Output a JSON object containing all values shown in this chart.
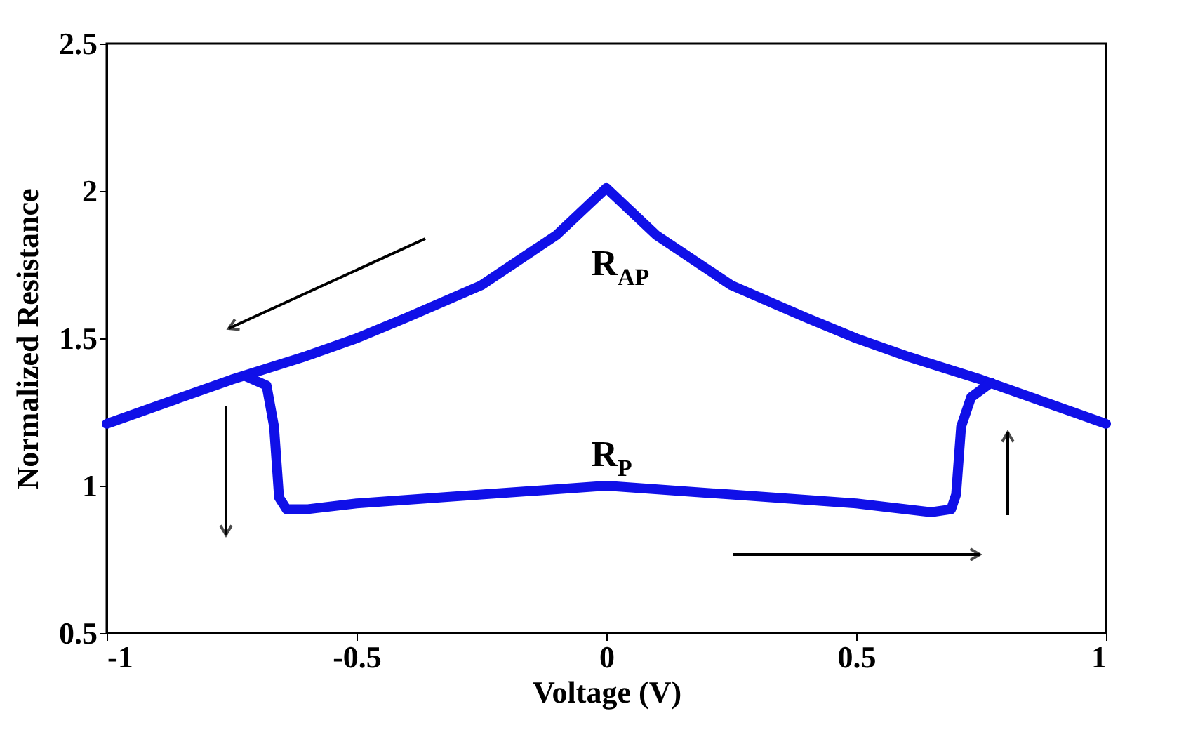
{
  "chart_data": {
    "type": "line",
    "xlabel": "Voltage (V)",
    "ylabel": "Normalized Resistance",
    "xlim": [
      -1,
      1
    ],
    "xticks": [
      -1,
      -0.5,
      0,
      0.5,
      1
    ],
    "ylim": [
      0.5,
      2.5
    ],
    "yticks": [
      0.5,
      1,
      1.5,
      2,
      2.5
    ],
    "grid": false,
    "line_style": "solid",
    "series": [
      {
        "color": "#1010e8",
        "x": [
          -1,
          -0.9,
          -0.75,
          -0.6,
          -0.5,
          -0.4,
          -0.25,
          -0.1,
          0,
          0.1,
          0.25,
          0.4,
          0.5,
          0.6,
          0.75,
          0.9,
          1
        ],
        "values": [
          1.21,
          1.27,
          1.36,
          1.44,
          1.5,
          1.57,
          1.68,
          1.85,
          2.01,
          1.85,
          1.68,
          1.57,
          1.5,
          1.44,
          1.36,
          1.27,
          1.21
        ]
      },
      {
        "color": "#1010e8",
        "x": [
          -0.72,
          -0.68,
          -0.665,
          -0.655,
          -0.64,
          -0.6,
          -0.5,
          -0.25,
          0,
          0.25,
          0.5,
          0.65,
          0.69,
          0.7,
          0.71,
          0.73,
          0.77
        ],
        "values": [
          1.37,
          1.34,
          1.2,
          0.96,
          0.92,
          0.92,
          0.94,
          0.97,
          1.0,
          0.97,
          0.94,
          0.91,
          0.92,
          0.97,
          1.2,
          1.3,
          1.35
        ]
      }
    ],
    "annotations": [
      "R$_{AP}$",
      "R$_{P}$"
    ]
  }
}
